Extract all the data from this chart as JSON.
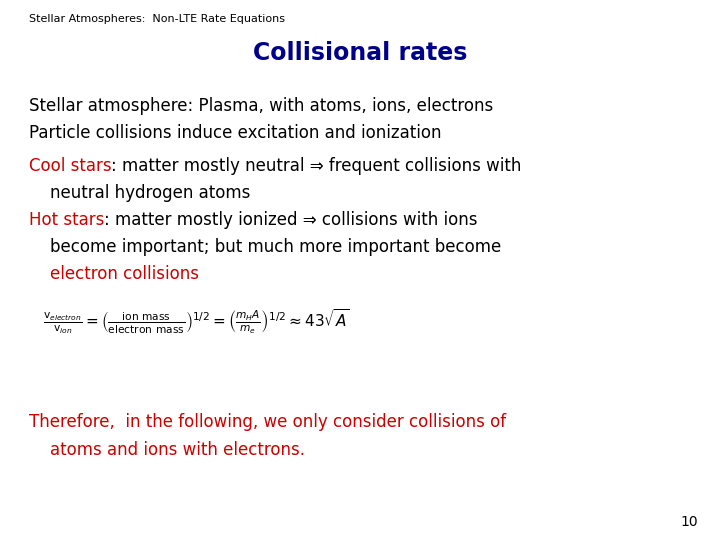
{
  "bg_color": "#ffffff",
  "header_text": "Stellar Atmospheres:  Non-LTE Rate Equations",
  "header_color": "#000000",
  "header_fontsize": 8,
  "title_text": "Collisional rates",
  "title_color": "#00008B",
  "title_fontsize": 17,
  "line1": "Stellar atmosphere: Plasma, with atoms, ions, electrons",
  "line2": "Particle collisions induce excitation and ionization",
  "line3_red": "Cool stars",
  "line3_black": ": matter mostly neutral ⇒ frequent collisions with",
  "line4": "    neutral hydrogen atoms",
  "line5_red": "Hot stars",
  "line5_black": ": matter mostly ionized ⇒ collisions with ions",
  "line6": "    become important; but much more important become",
  "line7_red": "    electron collisions",
  "body_fontsize": 12,
  "body_color": "#000000",
  "red_color": "#cc0000",
  "footer_red1": "Therefore,  in the following, we only consider collisions of",
  "footer_red2": "    atoms and ions with electrons.",
  "footer_fontsize": 12,
  "page_number": "10",
  "page_number_fontsize": 10
}
